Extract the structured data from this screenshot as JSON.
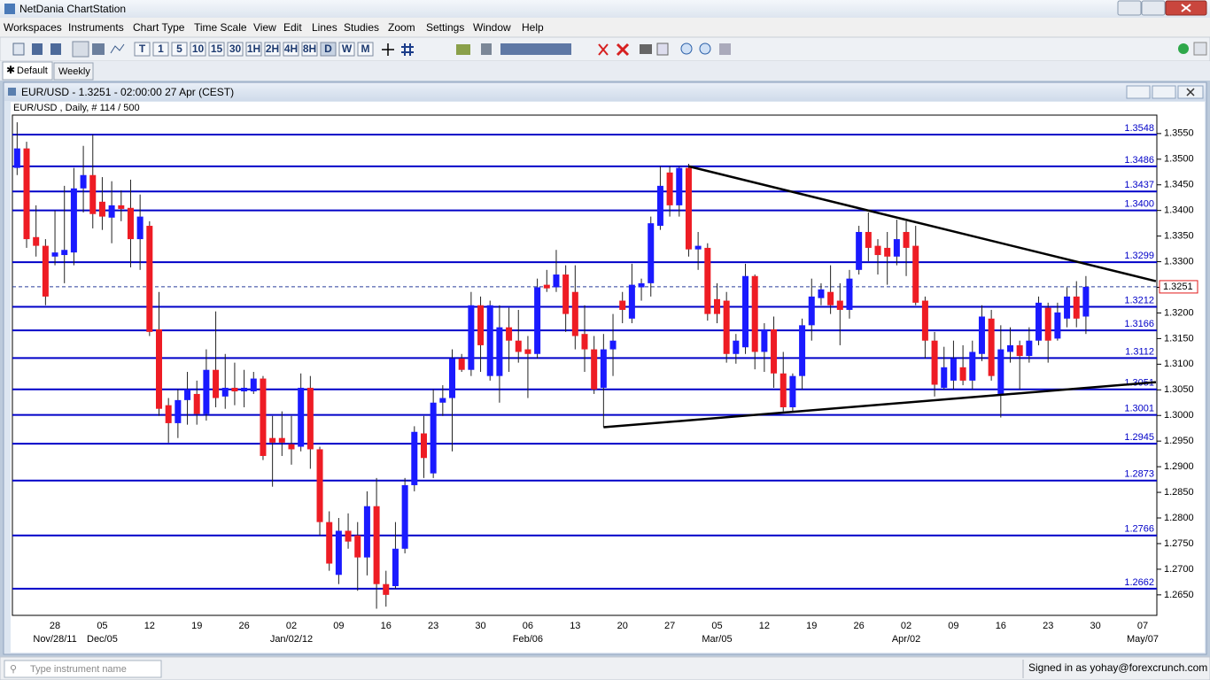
{
  "window_title": "NetDania ChartStation",
  "menu": [
    "Workspaces",
    "Instruments",
    "Chart Type",
    "Time Scale",
    "View",
    "Edit",
    "Lines",
    "Studies",
    "Zoom",
    "Settings",
    "Window",
    "Help"
  ],
  "toolbar_timeframes": [
    "T",
    "1",
    "5",
    "10",
    "15",
    "30",
    "1H",
    "2H",
    "4H",
    "8H",
    "D",
    "W",
    "M"
  ],
  "tabs": [
    "Default",
    "Weekly"
  ],
  "chart_window_title": "EUR/USD - 1.3251 - 02:00:00  27 Apr (CEST)",
  "status": {
    "search_placeholder": "Type instrument name",
    "signed_in": "Signed in as yohay@forexcrunch.com"
  },
  "chart_data": {
    "type": "candlestick",
    "title": "EUR/USD , Daily, # 114 / 500",
    "categories": [
      null,
      null,
      null,
      null,
      "28",
      null,
      null,
      null,
      null,
      "05",
      null,
      null,
      null,
      null,
      "12",
      null,
      null,
      null,
      null,
      "19",
      null,
      null,
      null,
      null,
      "26",
      null,
      null,
      null,
      null,
      "02",
      null,
      null,
      null,
      null,
      "09",
      null,
      null,
      null,
      null,
      "16",
      null,
      null,
      null,
      null,
      "23",
      null,
      null,
      null,
      null,
      "30",
      null,
      null,
      null,
      null,
      "06",
      null,
      null,
      null,
      null,
      "13",
      null,
      null,
      null,
      null,
      "20",
      null,
      null,
      null,
      null,
      "27",
      null,
      null,
      null,
      null,
      "05",
      null,
      null,
      null,
      null,
      "12",
      null,
      null,
      null,
      null,
      "19",
      null,
      null,
      null,
      null,
      "26",
      null,
      null,
      null,
      null,
      "02",
      null,
      null,
      null,
      null,
      "09",
      null,
      null,
      null,
      null,
      "16",
      null,
      null,
      null,
      null,
      "23",
      null,
      null,
      null,
      null,
      "30",
      null,
      null,
      null,
      null,
      "07",
      null
    ],
    "date_labels": [
      null,
      null,
      null,
      null,
      "Nov/28/11",
      null,
      null,
      null,
      null,
      "Dec/05",
      null,
      null,
      null,
      null,
      null,
      null,
      null,
      null,
      null,
      null,
      null,
      null,
      null,
      null,
      null,
      null,
      null,
      null,
      null,
      "Jan/02/12",
      null,
      null,
      null,
      null,
      null,
      null,
      null,
      null,
      null,
      null,
      null,
      null,
      null,
      null,
      null,
      null,
      null,
      null,
      null,
      null,
      null,
      null,
      null,
      null,
      "Feb/06",
      null,
      null,
      null,
      null,
      null,
      null,
      null,
      null,
      null,
      null,
      null,
      null,
      null,
      null,
      null,
      null,
      null,
      null,
      null,
      "Mar/05",
      null,
      null,
      null,
      null,
      null,
      null,
      null,
      null,
      null,
      null,
      null,
      null,
      null,
      null,
      null,
      null,
      null,
      null,
      null,
      "Apr/02",
      null,
      null,
      null,
      null,
      null,
      null,
      null,
      null,
      null,
      null,
      null,
      null,
      null,
      null,
      null,
      null,
      null,
      null,
      null,
      null,
      null,
      null,
      null,
      null,
      "May/07",
      null
    ],
    "open": [
      1.3483,
      1.3521,
      1.3348,
      1.3331,
      1.331,
      1.3313,
      1.3318,
      1.3443,
      1.3469,
      1.3417,
      1.3386,
      1.341,
      1.3405,
      1.3344,
      1.337,
      1.3168,
      1.302,
      1.2985,
      1.303,
      1.3042,
      1.3003,
      1.3089,
      1.3037,
      1.3054,
      1.3047,
      1.3047,
      1.3072,
      1.2956,
      1.2956,
      1.2944,
      1.2939,
      1.3054,
      1.2934,
      1.2792,
      1.2689,
      1.2775,
      1.2766,
      1.2723,
      1.2823,
      1.2671,
      1.2667,
      1.274,
      1.2864,
      1.2965,
      1.2887,
      1.3025,
      1.3034,
      1.3111,
      1.3089,
      1.3215,
      1.3077,
      1.3077,
      1.3172,
      1.3146,
      1.3129,
      1.312,
      1.3255,
      1.325,
      1.3275,
      1.3241,
      1.3159,
      1.3129,
      1.3054,
      1.3129,
      1.3224,
      1.3189,
      1.325,
      1.3258,
      1.337,
      1.3474,
      1.341,
      1.3483,
      1.3324,
      1.3327,
      1.3227,
      1.3224,
      1.312,
      1.3133,
      1.3272,
      1.3124,
      1.3168,
      1.3082,
      1.3016,
      1.3077,
      1.3176,
      1.3229,
      1.3241,
      1.3224,
      1.3206,
      1.3284,
      1.3358,
      1.3331,
      1.3327,
      1.331,
      1.3358,
      1.3331,
      1.3224,
      1.3146,
      1.3054,
      1.3068,
      1.3094,
      1.3068,
      1.312,
      1.3189,
      1.3042,
      1.3124,
      1.3137,
      1.3116,
      1.3146,
      1.321,
      1.315,
      1.3189,
      1.3232,
      1.3193,
      null,
      null,
      null,
      null,
      null,
      null,
      null
    ],
    "high": [
      1.3572,
      1.3534,
      1.341,
      1.3344,
      1.34,
      1.3448,
      1.3483,
      1.3526,
      1.3548,
      1.3465,
      1.3457,
      1.3439,
      1.346,
      1.3431,
      1.3379,
      1.3241,
      1.3034,
      1.3051,
      1.3085,
      1.3068,
      1.3129,
      1.3203,
      1.312,
      1.3103,
      1.3089,
      1.3085,
      1.3077,
      1.2999,
      1.3008,
      1.2999,
      1.3082,
      1.3077,
      1.2939,
      1.2813,
      1.28,
      1.2809,
      1.2792,
      1.2852,
      1.2878,
      1.2697,
      1.2792,
      1.2878,
      1.2979,
      1.2999,
      1.3051,
      1.3059,
      1.3129,
      1.312,
      1.3241,
      1.3232,
      1.3224,
      1.3215,
      1.321,
      1.3206,
      1.3155,
      1.3267,
      1.3284,
      1.3323,
      1.3293,
      1.3293,
      1.3215,
      1.3155,
      1.3159,
      1.3198,
      1.3241,
      1.3296,
      1.3267,
      1.3388,
      1.3486,
      1.3486,
      1.3486,
      1.3491,
      1.3358,
      1.3336,
      1.3258,
      1.3241,
      1.3159,
      1.3296,
      1.3275,
      1.318,
      1.3193,
      1.3124,
      1.3082,
      1.3189,
      1.3267,
      1.3258,
      1.3293,
      1.3258,
      1.3284,
      1.337,
      1.3396,
      1.3344,
      1.3358,
      1.3382,
      1.3379,
      1.337,
      1.3232,
      1.3163,
      1.3134,
      1.3146,
      1.3137,
      1.3146,
      1.3215,
      1.3206,
      1.3176,
      1.3172,
      1.3146,
      1.3172,
      1.3232,
      1.322,
      1.322,
      1.325,
      1.3262,
      1.3272,
      null,
      null,
      null,
      null,
      null,
      null,
      null
    ],
    "low": [
      1.3469,
      1.3327,
      1.331,
      1.3215,
      1.3293,
      1.3258,
      1.3293,
      1.3396,
      1.3365,
      1.3362,
      1.3336,
      1.3379,
      1.3289,
      1.3284,
      1.3155,
      1.2999,
      1.2947,
      1.2956,
      1.2982,
      1.2982,
      1.299,
      1.3016,
      1.3013,
      1.302,
      1.3016,
      1.3042,
      1.2913,
      1.2861,
      1.2921,
      1.2904,
      1.293,
      1.2896,
      1.2766,
      1.2697,
      1.2671,
      1.274,
      1.2658,
      1.2688,
      1.2623,
      1.2627,
      1.2662,
      1.2731,
      1.2852,
      1.2878,
      1.2878,
      1.2999,
      1.293,
      1.3085,
      1.3077,
      1.3085,
      1.3068,
      1.3025,
      1.3085,
      1.3103,
      1.3034,
      1.3111,
      1.3241,
      1.3241,
      1.3163,
      1.3129,
      1.3085,
      1.3042,
      1.2977,
      1.3077,
      1.318,
      1.318,
      1.3224,
      1.3232,
      1.3362,
      1.3388,
      1.3388,
      1.331,
      1.3284,
      1.3185,
      1.318,
      1.3103,
      1.3101,
      1.312,
      1.309,
      1.3085,
      1.3054,
      1.3008,
      1.3008,
      1.3051,
      1.3146,
      1.3215,
      1.3198,
      1.3137,
      1.3189,
      1.3275,
      1.3301,
      1.3275,
      1.3255,
      1.3293,
      1.3272,
      1.3215,
      1.3111,
      1.3037,
      1.3051,
      1.3051,
      1.3059,
      1.3051,
      1.3106,
      1.3068,
      1.2996,
      1.3103,
      1.3051,
      1.3103,
      1.3137,
      1.3103,
      1.3146,
      1.3172,
      1.3172,
      1.3159,
      null,
      null,
      null,
      null,
      null,
      null,
      null
    ],
    "close": [
      1.3521,
      1.3344,
      1.3331,
      1.3232,
      1.3318,
      1.3323,
      1.3443,
      1.3469,
      1.3393,
      1.3388,
      1.341,
      1.3403,
      1.3344,
      1.3388,
      1.3163,
      1.3013,
      1.2985,
      1.303,
      1.3051,
      1.3003,
      1.3089,
      1.3034,
      1.3054,
      1.3047,
      1.3054,
      1.3072,
      1.2921,
      1.2947,
      1.2947,
      1.2934,
      1.3054,
      1.2934,
      1.2792,
      1.2711,
      1.2775,
      1.2754,
      1.2723,
      1.2823,
      1.2671,
      1.265,
      1.274,
      1.2864,
      1.2968,
      1.2917,
      1.3025,
      1.3034,
      1.3111,
      1.3089,
      1.3215,
      1.3137,
      1.3215,
      1.3172,
      1.3146,
      1.3124,
      1.312,
      1.325,
      1.3248,
      1.3275,
      1.3198,
      1.3155,
      1.3129,
      1.3051,
      1.3129,
      1.3146,
      1.3206,
      1.3255,
      1.3258,
      1.3375,
      1.3448,
      1.341,
      1.3483,
      1.3324,
      1.3331,
      1.3198,
      1.3198,
      1.312,
      1.3146,
      1.3272,
      1.3124,
      1.3168,
      1.3082,
      1.3016,
      1.3077,
      1.3176,
      1.3232,
      1.3246,
      1.3215,
      1.3206,
      1.3267,
      1.3358,
      1.3327,
      1.3313,
      1.331,
      1.3344,
      1.3327,
      1.322,
      1.3146,
      1.306,
      1.3094,
      1.3111,
      1.3068,
      1.3124,
      1.3193,
      1.3077,
      1.3129,
      1.3137,
      1.3116,
      1.3146,
      1.322,
      1.3146,
      1.3201,
      1.3232,
      1.3189,
      1.3251,
      null,
      null,
      null,
      null,
      null,
      null,
      null
    ],
    "up_color": "#1a1aff",
    "down_color": "#ee1c24",
    "ylim": [
      1.261,
      1.3586
    ],
    "yticks": [
      {
        "value": 1.265,
        "label": "1.2650"
      },
      {
        "value": 1.27,
        "label": "1.2700"
      },
      {
        "value": 1.275,
        "label": "1.2750"
      },
      {
        "value": 1.28,
        "label": "1.2800"
      },
      {
        "value": 1.285,
        "label": "1.2850"
      },
      {
        "value": 1.29,
        "label": "1.2900"
      },
      {
        "value": 1.295,
        "label": "1.2950"
      },
      {
        "value": 1.3,
        "label": "1.3000"
      },
      {
        "value": 1.305,
        "label": "1.3050"
      },
      {
        "value": 1.31,
        "label": "1.3100"
      },
      {
        "value": 1.315,
        "label": "1.3150"
      },
      {
        "value": 1.32,
        "label": "1.3200"
      },
      {
        "value": 1.325,
        "label": "1.3250"
      },
      {
        "value": 1.33,
        "label": "1.3300"
      },
      {
        "value": 1.335,
        "label": "1.3350"
      },
      {
        "value": 1.34,
        "label": "1.3400"
      },
      {
        "value": 1.345,
        "label": "1.3450"
      },
      {
        "value": 1.35,
        "label": "1.3500"
      },
      {
        "value": 1.355,
        "label": "1.3550"
      }
    ],
    "levels": [
      {
        "value": 1.3548,
        "label": "1.3548"
      },
      {
        "value": 1.3486,
        "label": "1.3486"
      },
      {
        "value": 1.3437,
        "label": "1.3437"
      },
      {
        "value": 1.34,
        "label": "1.3400"
      },
      {
        "value": 1.3299,
        "label": "1.3299"
      },
      {
        "value": 1.3212,
        "label": "1.3212"
      },
      {
        "value": 1.3166,
        "label": "1.3166"
      },
      {
        "value": 1.3112,
        "label": "1.3112"
      },
      {
        "value": 1.3051,
        "label": "1.3051"
      },
      {
        "value": 1.3001,
        "label": "1.3001"
      },
      {
        "value": 1.2945,
        "label": "1.2945"
      },
      {
        "value": 1.2873,
        "label": "1.2873"
      },
      {
        "value": 1.2766,
        "label": "1.2766"
      },
      {
        "value": 1.2662,
        "label": "1.2662"
      }
    ],
    "level_color": "#0000c8",
    "last_price": {
      "value": 1.3251,
      "label": "1.3251"
    },
    "trendlines": [
      {
        "x": [
          71,
          120.4
        ],
        "y": [
          1.3486,
          1.3262
        ]
      },
      {
        "x": [
          62,
          120.4
        ],
        "y": [
          1.2977,
          1.3065
        ]
      }
    ],
    "trendline_color": "#000000"
  }
}
